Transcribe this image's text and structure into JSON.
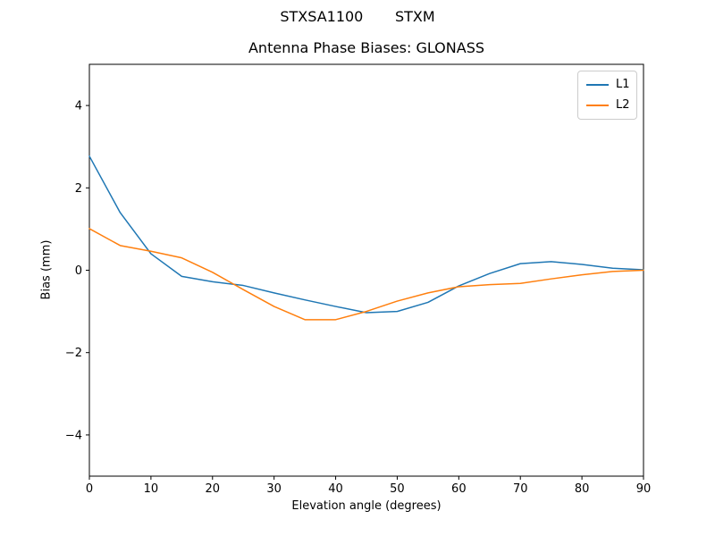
{
  "figure": {
    "suptitle": "STXSA1100       STXM",
    "background": "#ffffff"
  },
  "chart_data": {
    "type": "line",
    "title": "Antenna Phase Biases: GLONASS",
    "xlabel": "Elevation angle (degrees)",
    "ylabel": "Bias (mm)",
    "x": [
      0,
      5,
      10,
      15,
      20,
      25,
      30,
      35,
      40,
      45,
      50,
      55,
      60,
      65,
      70,
      75,
      80,
      85,
      90
    ],
    "series": [
      {
        "name": "L1",
        "color": "#1f77b4",
        "values": [
          2.77,
          1.4,
          0.4,
          -0.15,
          -0.28,
          -0.37,
          -0.55,
          -0.72,
          -0.88,
          -1.03,
          -1.0,
          -0.78,
          -0.38,
          -0.08,
          0.16,
          0.21,
          0.14,
          0.05,
          0.01
        ]
      },
      {
        "name": "L2",
        "color": "#ff7f0e",
        "values": [
          1.01,
          0.6,
          0.46,
          0.3,
          -0.05,
          -0.47,
          -0.88,
          -1.2,
          -1.2,
          -1.0,
          -0.75,
          -0.55,
          -0.4,
          -0.35,
          -0.32,
          -0.21,
          -0.11,
          -0.03,
          0.0
        ]
      }
    ],
    "xlim": [
      0,
      90
    ],
    "ylim": [
      -5,
      5
    ],
    "xticks": [
      0,
      10,
      20,
      30,
      40,
      50,
      60,
      70,
      80,
      90
    ],
    "yticks": [
      -4,
      -2,
      0,
      2,
      4
    ],
    "grid": false,
    "legend_position": "upper right",
    "line_width": 1.5,
    "spine_color": "#000000"
  }
}
